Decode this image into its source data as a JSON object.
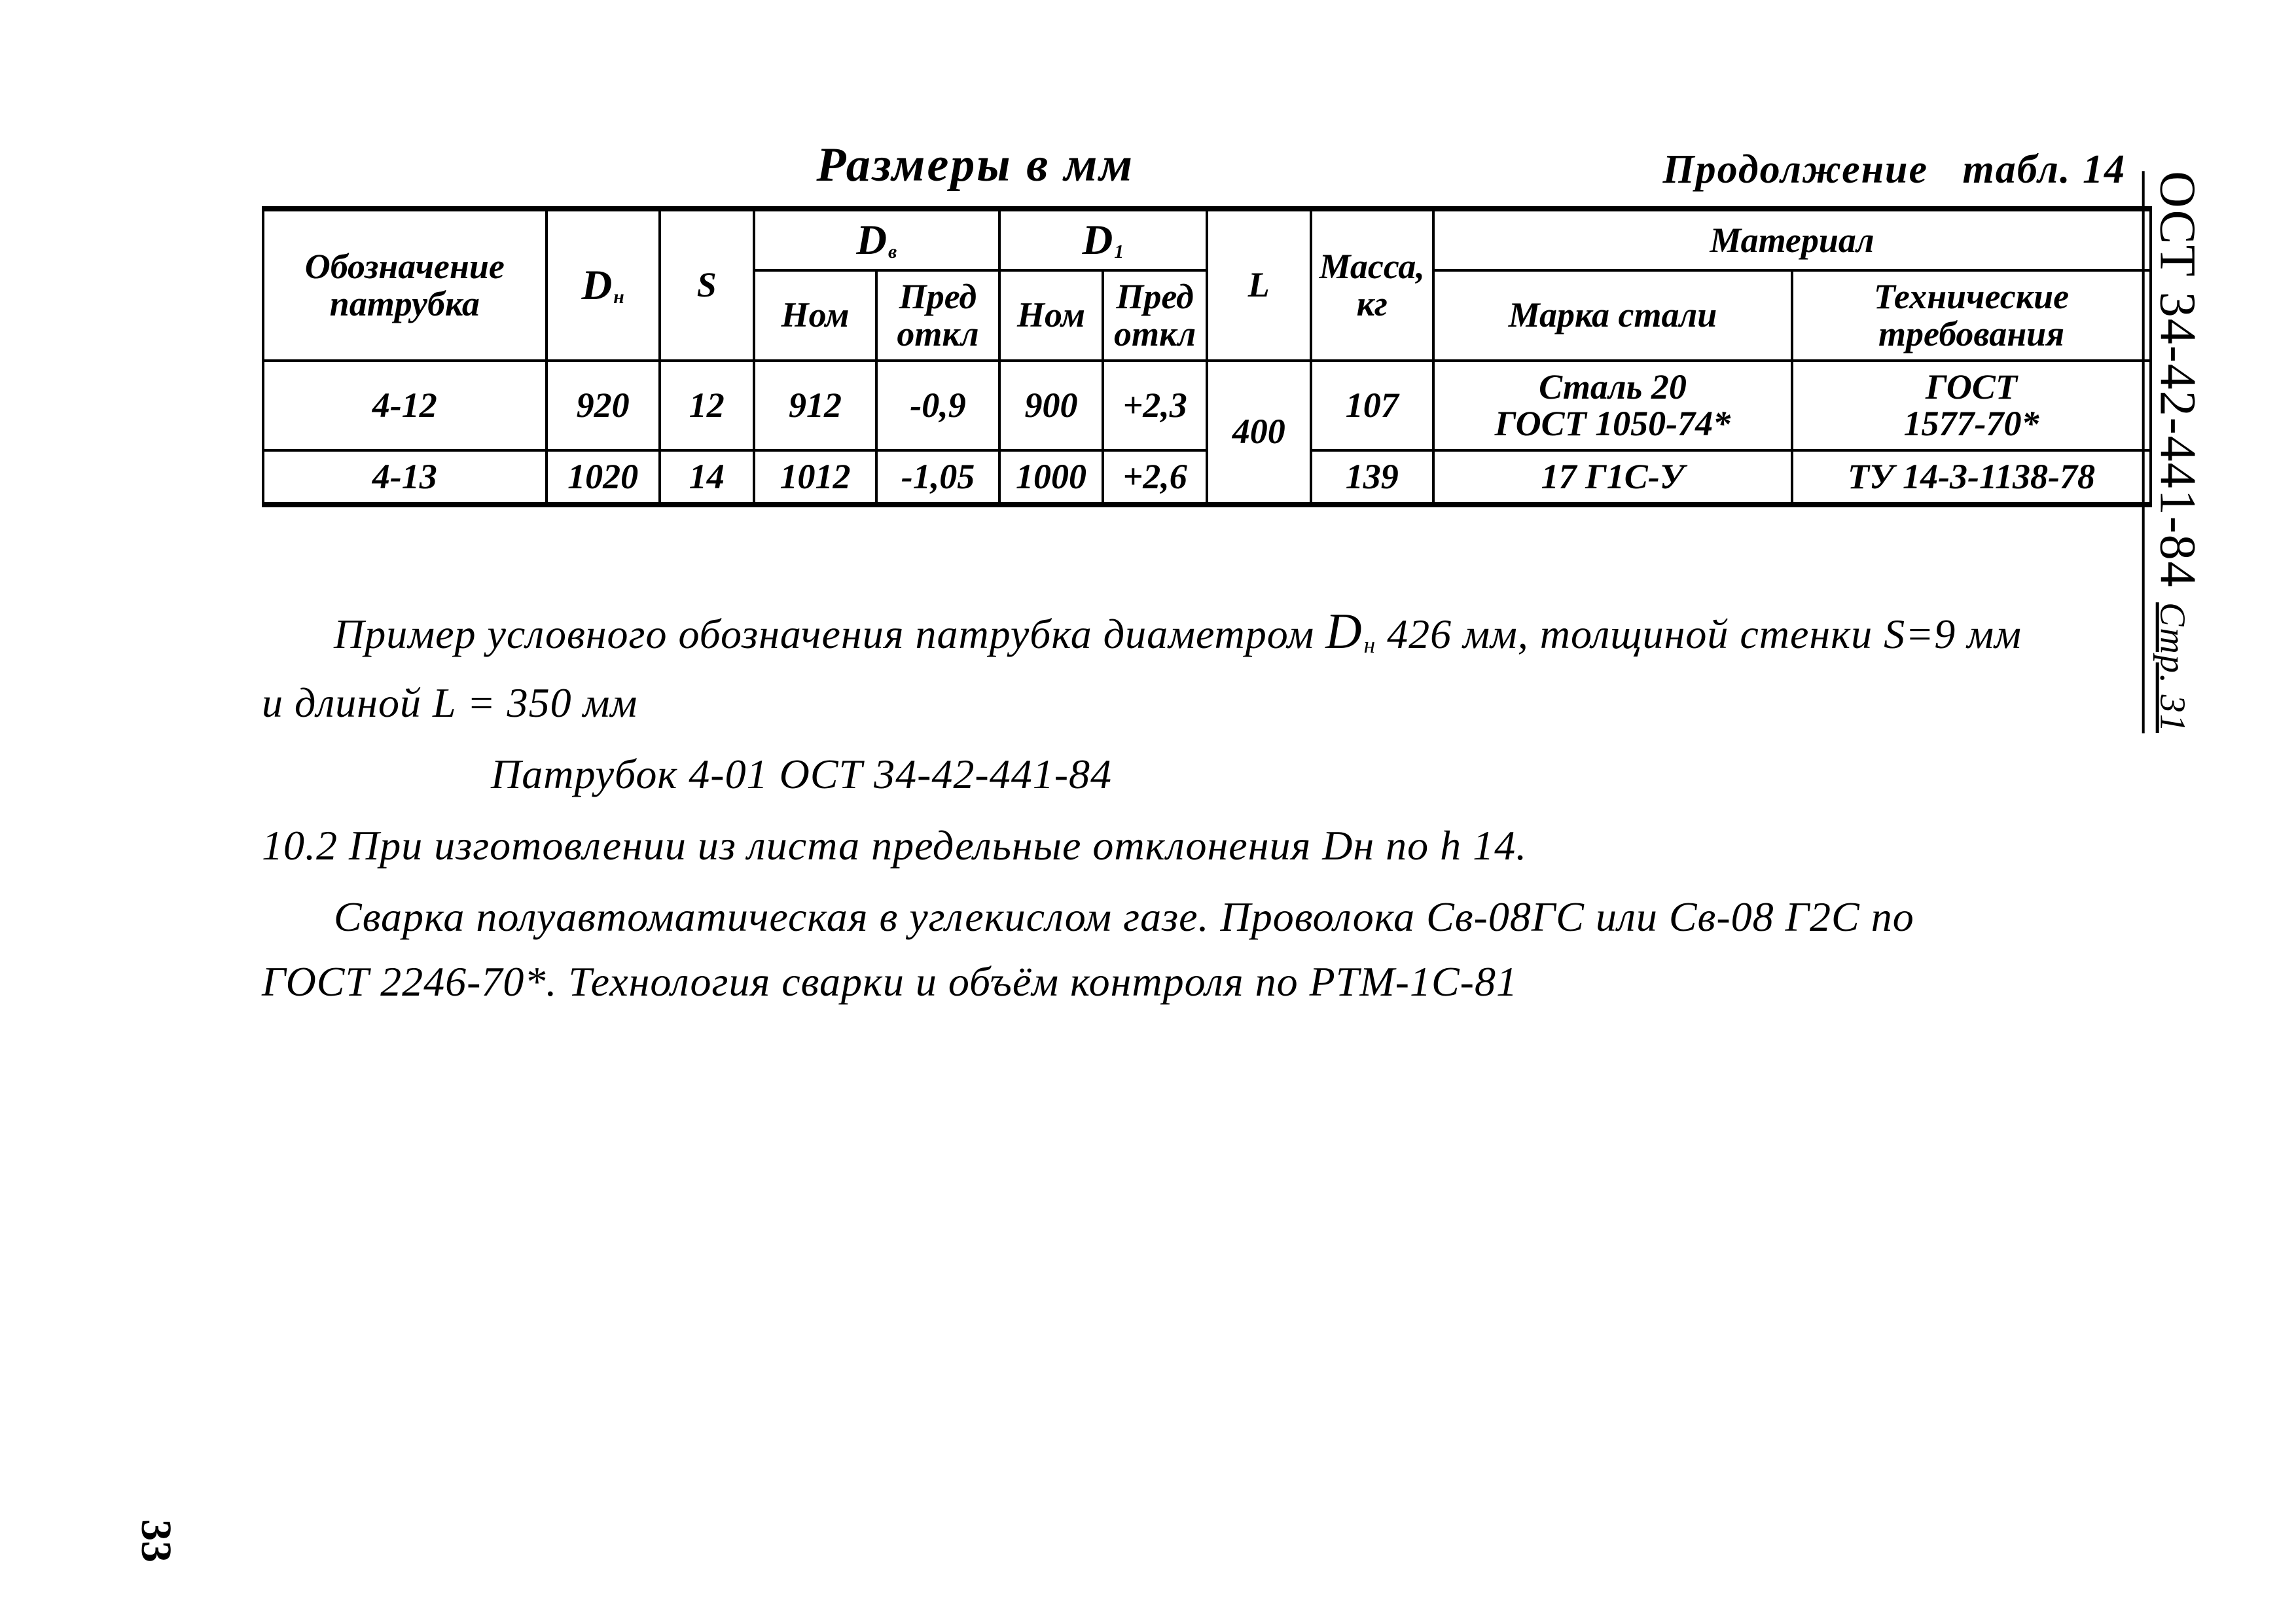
{
  "caption_center": "Размеры в мм",
  "caption_right": "Продолжение   табл. 14",
  "headers": {
    "col1": "Обозначение патрубка",
    "col2_html": "D_н",
    "col3": "S",
    "col_db": "D_в",
    "col_d1": "D_1",
    "nom": "Ном",
    "pred": "Пред откл",
    "L": "L",
    "mass": "Масса, кг",
    "material": "Материал",
    "mat1": "Марка стали",
    "mat2": "Технические требования"
  },
  "rows": [
    {
      "id": "4-12",
      "Dn": "920",
      "S": "12",
      "Db_nom": "912",
      "Db_dev": "-0,9",
      "D1_nom": "900",
      "D1_dev": "+2,3",
      "L": "400",
      "mass": "107",
      "steel": "Сталь 20<br>ГОСТ 1050-74*",
      "spec": "ГОСТ<br>1577-70*"
    },
    {
      "id": "4-13",
      "Dn": "1020",
      "S": "14",
      "Db_nom": "1012",
      "Db_dev": "-1,05",
      "D1_nom": "1000",
      "D1_dev": "+2,6",
      "L": "",
      "mass": "139",
      "steel": "17 Г1С-У",
      "spec": "ТУ 14-3-1138-78"
    }
  ],
  "body": {
    "p1": "Пример условного обозначения патрубка диаметром D_н 426 мм, толщиной стенки S=9 мм и длиной L = 350 мм",
    "p2": "Патрубок 4-01 ОСТ 34-42-441-84",
    "p3": "10.2 При изготовлении из листа предельные отклонения Dн по h 14.",
    "p4": "Сварка полуавтоматическая в углекислом газе. Проволока Св-08ГС или Св-08 Г2С по ГОСТ 2246-70*. Технология сварки и объём контроля по РТМ-1С-81"
  },
  "side_code": "ОСТ 34-42-441-84",
  "side_page": "Стр. 31",
  "page_number": "33",
  "colors": {
    "ink": "#000000",
    "paper": "#ffffff"
  }
}
